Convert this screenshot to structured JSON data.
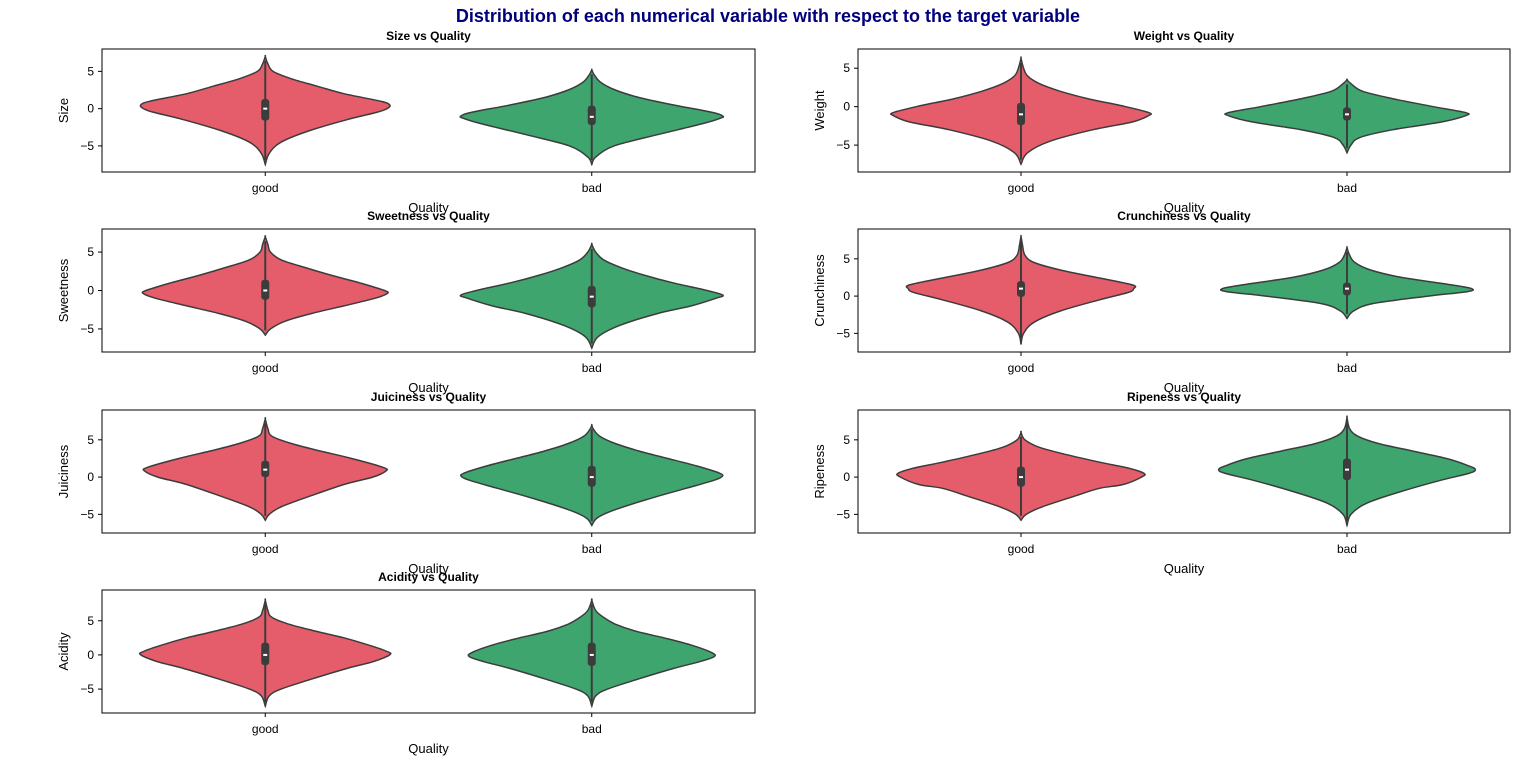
{
  "figure": {
    "title": "Distribution of each numerical variable with respect to the target variable",
    "title_color": "#00007f"
  },
  "colors": {
    "good": "#e55c6a",
    "bad": "#3ea56f",
    "outline": "#3c3c3c",
    "box": "#3c3c3c",
    "median": "#ffffff"
  },
  "chart_data": [
    {
      "type": "violin",
      "title": "Size vs Quality",
      "xlabel": "Quality",
      "ylabel": "Size",
      "categories": [
        "good",
        "bad"
      ],
      "ylim": [
        -8.5,
        8
      ],
      "yticks": [
        -5,
        0,
        5
      ],
      "series": [
        {
          "category": "good",
          "min": -7.5,
          "max": 7.0,
          "q1": -1.6,
          "median": 0.0,
          "q3": 1.3,
          "width_profile": [
            [
              -7.5,
              0.0
            ],
            [
              -6.0,
              0.03
            ],
            [
              -4.5,
              0.12
            ],
            [
              -3,
              0.33
            ],
            [
              -1.5,
              0.62
            ],
            [
              -0.5,
              0.85
            ],
            [
              0,
              0.93
            ],
            [
              0.5,
              0.95
            ],
            [
              1,
              0.88
            ],
            [
              2,
              0.6
            ],
            [
              3,
              0.4
            ],
            [
              4,
              0.2
            ],
            [
              5,
              0.06
            ],
            [
              6,
              0.02
            ],
            [
              7,
              0
            ]
          ]
        },
        {
          "category": "bad",
          "min": -7.5,
          "max": 5.2,
          "q1": -2.2,
          "median": -1.1,
          "q3": 0.4,
          "width_profile": [
            [
              -7.5,
              0.0
            ],
            [
              -6.5,
              0.03
            ],
            [
              -5,
              0.17
            ],
            [
              -3.5,
              0.5
            ],
            [
              -2,
              0.85
            ],
            [
              -1.3,
              0.98
            ],
            [
              -1,
              1.0
            ],
            [
              -0.5,
              0.92
            ],
            [
              0.5,
              0.62
            ],
            [
              1.5,
              0.36
            ],
            [
              2.5,
              0.18
            ],
            [
              3.5,
              0.07
            ],
            [
              4.5,
              0.02
            ],
            [
              5.2,
              0
            ]
          ]
        }
      ]
    },
    {
      "type": "violin",
      "title": "Weight vs Quality",
      "xlabel": "Quality",
      "ylabel": "Weight",
      "categories": [
        "good",
        "bad"
      ],
      "ylim": [
        -8.5,
        7.5
      ],
      "yticks": [
        -5,
        0,
        5
      ],
      "series": [
        {
          "category": "good",
          "min": -7.5,
          "max": 6.3,
          "q1": -2.4,
          "median": -1.0,
          "q3": 0.5,
          "width_profile": [
            [
              -7.5,
              0.0
            ],
            [
              -6,
              0.05
            ],
            [
              -4.5,
              0.22
            ],
            [
              -3,
              0.55
            ],
            [
              -2,
              0.85
            ],
            [
              -1.2,
              0.97
            ],
            [
              -0.8,
              0.98
            ],
            [
              0,
              0.8
            ],
            [
              1,
              0.52
            ],
            [
              2,
              0.3
            ],
            [
              3,
              0.14
            ],
            [
              4,
              0.05
            ],
            [
              5,
              0.02
            ],
            [
              6.3,
              0
            ]
          ]
        },
        {
          "category": "bad",
          "min": -6.0,
          "max": 3.5,
          "q1": -1.8,
          "median": -1.0,
          "q3": -0.1,
          "width_profile": [
            [
              -6.0,
              0.0
            ],
            [
              -5,
              0.03
            ],
            [
              -4,
              0.1
            ],
            [
              -3,
              0.35
            ],
            [
              -2,
              0.72
            ],
            [
              -1.2,
              0.9
            ],
            [
              -0.8,
              0.91
            ],
            [
              0,
              0.66
            ],
            [
              1,
              0.36
            ],
            [
              2,
              0.12
            ],
            [
              3,
              0.03
            ],
            [
              3.5,
              0
            ]
          ]
        }
      ]
    },
    {
      "type": "violin",
      "title": "Sweetness vs Quality",
      "xlabel": "Quality",
      "ylabel": "Sweetness",
      "categories": [
        "good",
        "bad"
      ],
      "ylim": [
        -8,
        8
      ],
      "yticks": [
        -5,
        0,
        5
      ],
      "series": [
        {
          "category": "good",
          "min": -5.8,
          "max": 7.0,
          "q1": -1.2,
          "median": 0.0,
          "q3": 1.4,
          "width_profile": [
            [
              -5.8,
              0.0
            ],
            [
              -5,
              0.04
            ],
            [
              -4,
              0.15
            ],
            [
              -3,
              0.35
            ],
            [
              -2,
              0.6
            ],
            [
              -1,
              0.84
            ],
            [
              -0.4,
              0.93
            ],
            [
              0,
              0.91
            ],
            [
              1,
              0.72
            ],
            [
              2,
              0.5
            ],
            [
              3,
              0.3
            ],
            [
              4,
              0.12
            ],
            [
              5,
              0.04
            ],
            [
              6,
              0.02
            ],
            [
              7,
              0
            ]
          ]
        },
        {
          "category": "bad",
          "min": -7.5,
          "max": 6.0,
          "q1": -2.2,
          "median": -0.8,
          "q3": 0.6,
          "width_profile": [
            [
              -7.5,
              0.0
            ],
            [
              -6,
              0.05
            ],
            [
              -4.5,
              0.22
            ],
            [
              -3,
              0.5
            ],
            [
              -2,
              0.76
            ],
            [
              -1,
              0.95
            ],
            [
              -0.6,
              1.0
            ],
            [
              0,
              0.88
            ],
            [
              1,
              0.62
            ],
            [
              2,
              0.4
            ],
            [
              3,
              0.22
            ],
            [
              4,
              0.09
            ],
            [
              5,
              0.03
            ],
            [
              6,
              0
            ]
          ]
        }
      ]
    },
    {
      "type": "violin",
      "title": "Crunchiness vs Quality",
      "xlabel": "Quality",
      "ylabel": "Crunchiness",
      "categories": [
        "good",
        "bad"
      ],
      "ylim": [
        -7.5,
        9
      ],
      "yticks": [
        -5,
        0,
        5
      ],
      "series": [
        {
          "category": "good",
          "min": -6.5,
          "max": 8.0,
          "q1": -0.1,
          "median": 1.0,
          "q3": 2.0,
          "width_profile": [
            [
              -6.5,
              0.0
            ],
            [
              -5,
              0.02
            ],
            [
              -3.5,
              0.1
            ],
            [
              -2,
              0.3
            ],
            [
              -0.5,
              0.6
            ],
            [
              0.5,
              0.82
            ],
            [
              1,
              0.86
            ],
            [
              1.5,
              0.85
            ],
            [
              2.5,
              0.58
            ],
            [
              3.5,
              0.3
            ],
            [
              4.5,
              0.1
            ],
            [
              5.5,
              0.03
            ],
            [
              7,
              0.01
            ],
            [
              8,
              0
            ]
          ]
        },
        {
          "category": "bad",
          "min": -3.0,
          "max": 6.5,
          "q1": 0.1,
          "median": 1.0,
          "q3": 1.8,
          "width_profile": [
            [
              -3.0,
              0.0
            ],
            [
              -2,
              0.05
            ],
            [
              -1,
              0.2
            ],
            [
              0,
              0.62
            ],
            [
              0.6,
              0.92
            ],
            [
              1,
              0.95
            ],
            [
              1.5,
              0.8
            ],
            [
              2.5,
              0.42
            ],
            [
              3.5,
              0.18
            ],
            [
              4.5,
              0.06
            ],
            [
              5.5,
              0.02
            ],
            [
              6.5,
              0
            ]
          ]
        }
      ]
    },
    {
      "type": "violin",
      "title": "Juiciness vs Quality",
      "xlabel": "Quality",
      "ylabel": "Juiciness",
      "categories": [
        "good",
        "bad"
      ],
      "ylim": [
        -7.5,
        9
      ],
      "yticks": [
        -5,
        0,
        5
      ],
      "series": [
        {
          "category": "good",
          "min": -5.8,
          "max": 7.8,
          "q1": 0.0,
          "median": 1.0,
          "q3": 2.2,
          "width_profile": [
            [
              -5.8,
              0.0
            ],
            [
              -5,
              0.03
            ],
            [
              -4,
              0.12
            ],
            [
              -2.5,
              0.35
            ],
            [
              -1,
              0.6
            ],
            [
              0,
              0.82
            ],
            [
              0.8,
              0.92
            ],
            [
              1.3,
              0.9
            ],
            [
              2.5,
              0.66
            ],
            [
              3.5,
              0.42
            ],
            [
              4.5,
              0.2
            ],
            [
              5.5,
              0.05
            ],
            [
              6.5,
              0.02
            ],
            [
              7.8,
              0
            ]
          ]
        },
        {
          "category": "bad",
          "min": -6.5,
          "max": 7.0,
          "q1": -1.3,
          "median": 0.0,
          "q3": 1.5,
          "width_profile": [
            [
              -6.5,
              0.0
            ],
            [
              -5.5,
              0.04
            ],
            [
              -4.5,
              0.16
            ],
            [
              -3,
              0.42
            ],
            [
              -1.5,
              0.72
            ],
            [
              -0.5,
              0.92
            ],
            [
              0,
              0.99
            ],
            [
              0.5,
              0.98
            ],
            [
              1.5,
              0.8
            ],
            [
              2.5,
              0.58
            ],
            [
              3.5,
              0.36
            ],
            [
              4.5,
              0.18
            ],
            [
              5.5,
              0.06
            ],
            [
              6.5,
              0.01
            ],
            [
              7,
              0
            ]
          ]
        }
      ]
    },
    {
      "type": "violin",
      "title": "Ripeness vs Quality",
      "xlabel": "Quality",
      "ylabel": "Ripeness",
      "categories": [
        "good",
        "bad"
      ],
      "ylim": [
        -7.5,
        9
      ],
      "yticks": [
        -5,
        0,
        5
      ],
      "series": [
        {
          "category": "good",
          "min": -5.8,
          "max": 6.0,
          "q1": -1.3,
          "median": 0.0,
          "q3": 1.4,
          "width_profile": [
            [
              -5.8,
              0.0
            ],
            [
              -5,
              0.04
            ],
            [
              -4,
              0.16
            ],
            [
              -2.5,
              0.42
            ],
            [
              -1.5,
              0.6
            ],
            [
              -1,
              0.78
            ],
            [
              0,
              0.92
            ],
            [
              0.5,
              0.94
            ],
            [
              1.2,
              0.82
            ],
            [
              2,
              0.6
            ],
            [
              3,
              0.35
            ],
            [
              4,
              0.14
            ],
            [
              5,
              0.03
            ],
            [
              6,
              0
            ]
          ]
        },
        {
          "category": "bad",
          "min": -6.5,
          "max": 8.0,
          "q1": -0.4,
          "median": 1.0,
          "q3": 2.5,
          "width_profile": [
            [
              -6.5,
              0.0
            ],
            [
              -5,
              0.03
            ],
            [
              -3.5,
              0.15
            ],
            [
              -2,
              0.4
            ],
            [
              -0.5,
              0.7
            ],
            [
              0.5,
              0.93
            ],
            [
              1,
              0.98
            ],
            [
              1.5,
              0.93
            ],
            [
              2.5,
              0.76
            ],
            [
              3.5,
              0.5
            ],
            [
              4.5,
              0.24
            ],
            [
              5.5,
              0.08
            ],
            [
              6.5,
              0.02
            ],
            [
              8,
              0
            ]
          ]
        }
      ]
    },
    {
      "type": "violin",
      "title": "Acidity vs Quality",
      "xlabel": "Quality",
      "ylabel": "Acidity",
      "categories": [
        "good",
        "bad"
      ],
      "ylim": [
        -8.5,
        9.5
      ],
      "yticks": [
        -5,
        0,
        5
      ],
      "series": [
        {
          "category": "good",
          "min": -7.5,
          "max": 8.0,
          "q1": -1.5,
          "median": 0.0,
          "q3": 1.8,
          "width_profile": [
            [
              -7.5,
              0.0
            ],
            [
              -6,
              0.03
            ],
            [
              -5,
              0.12
            ],
            [
              -3.5,
              0.36
            ],
            [
              -2,
              0.62
            ],
            [
              -1,
              0.82
            ],
            [
              0,
              0.95
            ],
            [
              0.5,
              0.93
            ],
            [
              1.5,
              0.78
            ],
            [
              2.5,
              0.6
            ],
            [
              3.5,
              0.38
            ],
            [
              4.5,
              0.18
            ],
            [
              5.5,
              0.05
            ],
            [
              6.5,
              0.02
            ],
            [
              8,
              0
            ]
          ]
        },
        {
          "category": "bad",
          "min": -7.5,
          "max": 8.0,
          "q1": -1.6,
          "median": 0.0,
          "q3": 1.8,
          "width_profile": [
            [
              -7.5,
              0.0
            ],
            [
              -6,
              0.03
            ],
            [
              -5,
              0.12
            ],
            [
              -3.5,
              0.36
            ],
            [
              -2,
              0.62
            ],
            [
              -1,
              0.82
            ],
            [
              -0.3,
              0.93
            ],
            [
              0.3,
              0.92
            ],
            [
              1.5,
              0.75
            ],
            [
              2.5,
              0.55
            ],
            [
              3.5,
              0.33
            ],
            [
              4.5,
              0.18
            ],
            [
              5.5,
              0.09
            ],
            [
              6.5,
              0.03
            ],
            [
              8,
              0
            ]
          ]
        }
      ]
    }
  ]
}
